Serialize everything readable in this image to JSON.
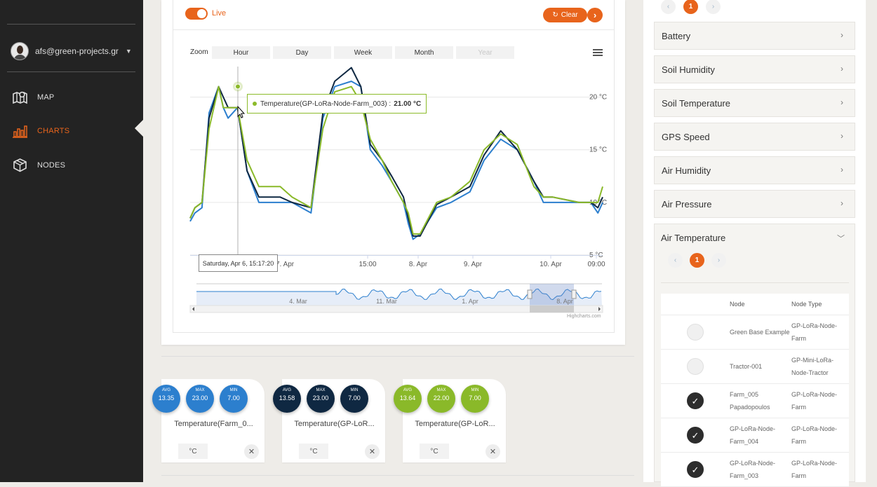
{
  "sidebar": {
    "user_email": "afs@green-projects.gr",
    "nav": [
      {
        "label": "MAP",
        "icon": "map-icon",
        "active": false
      },
      {
        "label": "CHARTS",
        "icon": "bar-chart-icon",
        "active": true
      },
      {
        "label": "NODES",
        "icon": "cube-icon",
        "active": false
      }
    ]
  },
  "chart": {
    "live_label": "Live",
    "live_on": true,
    "clear_label": "Clear",
    "zoom_label": "Zoom",
    "zoom_buttons": [
      "Hour",
      "Day",
      "Week",
      "Month",
      "Year"
    ],
    "tooltip_series": "Temperature(GP-LoRa-Node-Farm_003) :",
    "tooltip_value": "21.00 °C",
    "xaxis_tooltip": "Saturday, Apr 6, 15:17:20",
    "credit": "Highcharts.com"
  },
  "chart_data": {
    "type": "line",
    "y_ticks": [
      "5 °C",
      "10 °C",
      "15 °C",
      "20 °C"
    ],
    "x_ticks": [
      "7. Apr",
      "15:00",
      "8. Apr",
      "9. Apr",
      "10. Apr",
      "09:00"
    ],
    "navigator_ticks": [
      "4. Mar",
      "11. Mar",
      "1. Apr",
      "8. Apr"
    ],
    "ylim": [
      5,
      22.9
    ],
    "grid": true,
    "colors": [
      "#2c7fce",
      "#0f2842",
      "#8ab929"
    ],
    "series": [
      {
        "name": "Temperature(Farm_0...",
        "color": "#2c7fce",
        "points": [
          [
            0,
            8.2
          ],
          [
            0.02,
            9
          ],
          [
            0.05,
            9.5
          ],
          [
            0.08,
            18.5
          ],
          [
            0.12,
            21
          ],
          [
            0.14,
            19
          ],
          [
            0.16,
            18
          ],
          [
            0.2,
            19
          ],
          [
            0.24,
            13
          ],
          [
            0.29,
            10
          ],
          [
            0.38,
            10
          ],
          [
            0.43,
            10
          ],
          [
            0.51,
            9
          ],
          [
            0.56,
            18
          ],
          [
            0.61,
            21
          ],
          [
            0.68,
            21.5
          ],
          [
            0.72,
            21
          ],
          [
            0.76,
            15
          ],
          [
            0.81,
            13.5
          ],
          [
            0.85,
            12
          ],
          [
            0.9,
            10
          ],
          [
            0.92,
            8
          ],
          [
            0.94,
            6.5
          ],
          [
            0.97,
            7
          ],
          [
            1.04,
            9.5
          ],
          [
            1.1,
            10
          ],
          [
            1.18,
            11
          ],
          [
            1.24,
            14
          ],
          [
            1.31,
            16
          ],
          [
            1.38,
            15
          ],
          [
            1.45,
            12
          ],
          [
            1.49,
            10
          ],
          [
            1.53,
            10
          ],
          [
            1.64,
            10
          ],
          [
            1.69,
            10
          ],
          [
            1.72,
            9
          ],
          [
            1.74,
            10
          ]
        ]
      },
      {
        "name": "Temperature(GP-LoRa...",
        "color": "#0f2842",
        "points": [
          [
            0,
            8.5
          ],
          [
            0.02,
            9.5
          ],
          [
            0.05,
            10
          ],
          [
            0.08,
            18
          ],
          [
            0.12,
            21
          ],
          [
            0.14,
            20
          ],
          [
            0.16,
            19
          ],
          [
            0.2,
            19
          ],
          [
            0.24,
            13
          ],
          [
            0.29,
            10.5
          ],
          [
            0.38,
            10.5
          ],
          [
            0.43,
            10
          ],
          [
            0.51,
            9.5
          ],
          [
            0.56,
            18.5
          ],
          [
            0.61,
            21.5
          ],
          [
            0.68,
            22.8
          ],
          [
            0.72,
            21
          ],
          [
            0.76,
            15.5
          ],
          [
            0.81,
            14
          ],
          [
            0.85,
            12.5
          ],
          [
            0.9,
            10.5
          ],
          [
            0.92,
            8.5
          ],
          [
            0.94,
            6.8
          ],
          [
            0.97,
            6.8
          ],
          [
            1.04,
            9.8
          ],
          [
            1.1,
            10.5
          ],
          [
            1.18,
            11.5
          ],
          [
            1.24,
            14.5
          ],
          [
            1.31,
            16.8
          ],
          [
            1.38,
            15
          ],
          [
            1.45,
            12
          ],
          [
            1.49,
            10.5
          ],
          [
            1.53,
            10.5
          ],
          [
            1.64,
            10
          ],
          [
            1.69,
            10
          ],
          [
            1.72,
            9.5
          ],
          [
            1.74,
            10.5
          ]
        ]
      },
      {
        "name": "Temperature(GP-LoR...",
        "color": "#8ab929",
        "points": [
          [
            0,
            8.5
          ],
          [
            0.02,
            9.5
          ],
          [
            0.05,
            10
          ],
          [
            0.08,
            17
          ],
          [
            0.12,
            21
          ],
          [
            0.14,
            19
          ],
          [
            0.16,
            19
          ],
          [
            0.2,
            19
          ],
          [
            0.24,
            14
          ],
          [
            0.29,
            11.5
          ],
          [
            0.38,
            11.5
          ],
          [
            0.43,
            10.5
          ],
          [
            0.51,
            9.5
          ],
          [
            0.56,
            17
          ],
          [
            0.61,
            20.5
          ],
          [
            0.68,
            21
          ],
          [
            0.72,
            19.5
          ],
          [
            0.76,
            16
          ],
          [
            0.81,
            14
          ],
          [
            0.85,
            12
          ],
          [
            0.9,
            10
          ],
          [
            0.92,
            9
          ],
          [
            0.94,
            7
          ],
          [
            0.97,
            7
          ],
          [
            1.04,
            10
          ],
          [
            1.1,
            10.5
          ],
          [
            1.18,
            12
          ],
          [
            1.24,
            15
          ],
          [
            1.31,
            16.5
          ],
          [
            1.38,
            15.5
          ],
          [
            1.45,
            11.5
          ],
          [
            1.49,
            10.5
          ],
          [
            1.53,
            10.5
          ],
          [
            1.64,
            10
          ],
          [
            1.69,
            10
          ],
          [
            1.72,
            10
          ],
          [
            1.74,
            11.5
          ]
        ]
      }
    ]
  },
  "stats": [
    {
      "name": "Temperature(Farm_0...",
      "color": "#2c7fce",
      "avg": "13.35",
      "max": "23.00",
      "min": "7.00",
      "unit": "°C"
    },
    {
      "name": "Temperature(GP-LoR...",
      "color": "#0f2842",
      "avg": "13.58",
      "max": "23.00",
      "min": "7.00",
      "unit": "°C"
    },
    {
      "name": "Temperature(GP-LoR...",
      "color": "#8ab929",
      "avg": "13.64",
      "max": "22.00",
      "min": "7.00",
      "unit": "°C"
    }
  ],
  "stat_labels": {
    "avg": "AVG",
    "max": "MAX",
    "min": "MIN"
  },
  "right_panel": {
    "top_page": "1",
    "sensors": [
      "Battery",
      "Soil Humidity",
      "Soil Temperature",
      "GPS Speed",
      "Air Humidity",
      "Air Pressure"
    ],
    "expanded": {
      "title": "Air Temperature",
      "page": "1",
      "columns": [
        "Node",
        "Node Type"
      ],
      "rows": [
        {
          "node": "Green Base Example",
          "type": "GP-LoRa-Node-Farm",
          "checked": false
        },
        {
          "node": "Tractor-001",
          "type": "GP-Mini-LoRa-Node-Tractor",
          "checked": false
        },
        {
          "node": "Farm_005 Papadopoulos",
          "type": "GP-LoRa-Node-Farm",
          "checked": true
        },
        {
          "node": "GP-LoRa-Node-Farm_004",
          "type": "GP-LoRa-Node-Farm",
          "checked": true
        },
        {
          "node": "GP-LoRa-Node-Farm_003",
          "type": "GP-LoRa-Node-Farm",
          "checked": true
        }
      ]
    }
  }
}
